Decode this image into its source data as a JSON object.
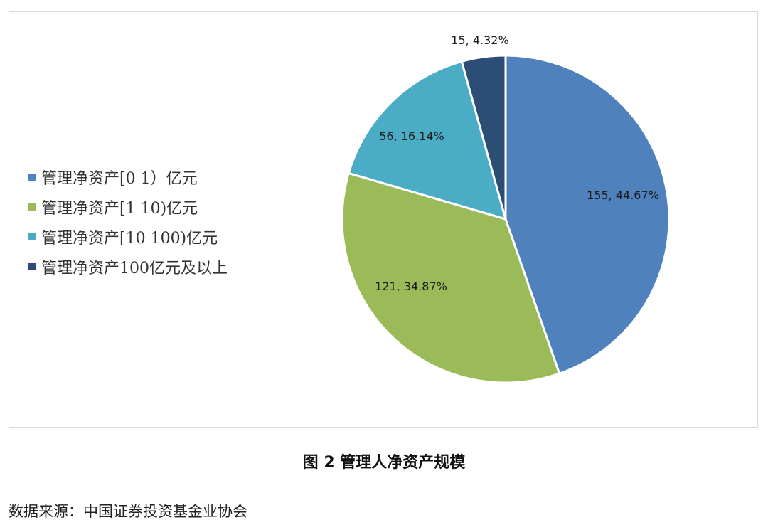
{
  "chart_data": {
    "type": "pie",
    "categories": [
      "管理净资产[0 1）亿元",
      "管理净资产[1 10)亿元",
      "管理净资产[10 100)亿元",
      "管理净资产100亿元及以上"
    ],
    "values": [
      155,
      121,
      56,
      15
    ],
    "percent_labels": [
      "44.67%",
      "34.87%",
      "16.14%",
      "4.32%"
    ],
    "data_labels": [
      "155, 44.67%",
      "121, 34.87%",
      "56, 16.14%",
      "15, 4.32%"
    ],
    "colors": [
      "#4f81bd",
      "#9bbb59",
      "#4bacc6",
      "#2c4d75"
    ],
    "legend_position": "left"
  },
  "caption": "图 2  管理人净资产规模",
  "source": "数据来源：中国证券投资基金业协会"
}
